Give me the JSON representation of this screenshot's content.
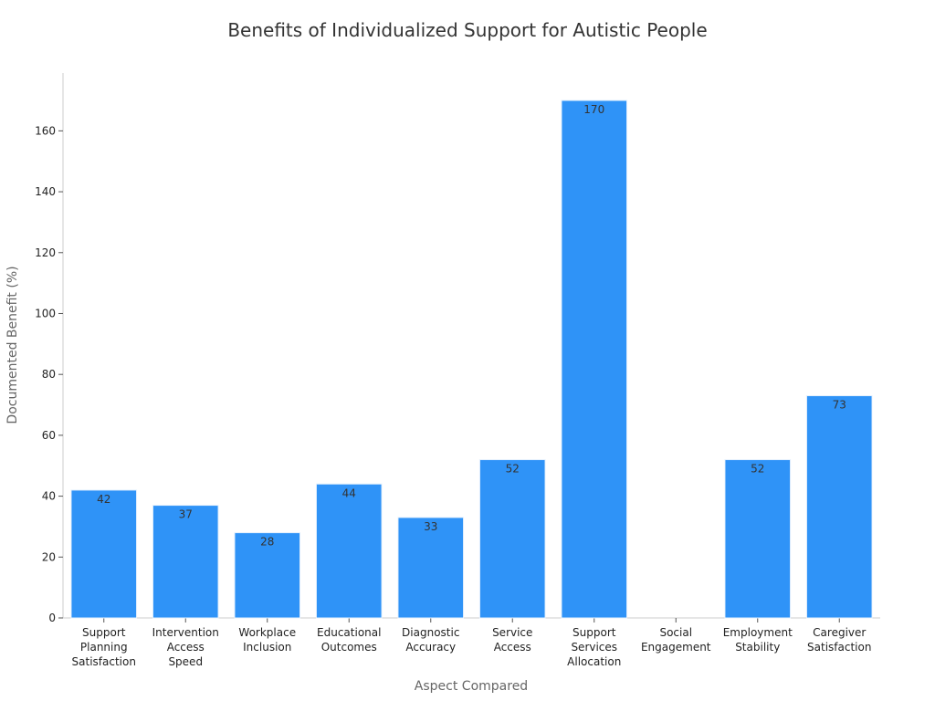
{
  "chart_data": {
    "type": "bar",
    "title": "Benefits of Individualized Support for Autistic People",
    "xlabel": "Aspect Compared",
    "ylabel": "Documented Benefit (%)",
    "categories": [
      [
        "Support",
        "Planning",
        "Satisfaction"
      ],
      [
        "Intervention",
        "Access",
        "Speed"
      ],
      [
        "Workplace",
        "Inclusion"
      ],
      [
        "Educational",
        "Outcomes"
      ],
      [
        "Diagnostic",
        "Accuracy"
      ],
      [
        "Service",
        "Access"
      ],
      [
        "Support",
        "Services",
        "Allocation"
      ],
      [
        "Social",
        "Engagement"
      ],
      [
        "Employment",
        "Stability"
      ],
      [
        "Caregiver",
        "Satisfaction"
      ]
    ],
    "values": [
      42,
      37,
      28,
      44,
      33,
      52,
      170,
      null,
      52,
      73
    ],
    "ylim": [
      0,
      179
    ],
    "yticks": [
      0,
      20,
      40,
      60,
      80,
      100,
      120,
      140,
      160
    ],
    "bar_color": "#2f93f7",
    "grid": false
  }
}
